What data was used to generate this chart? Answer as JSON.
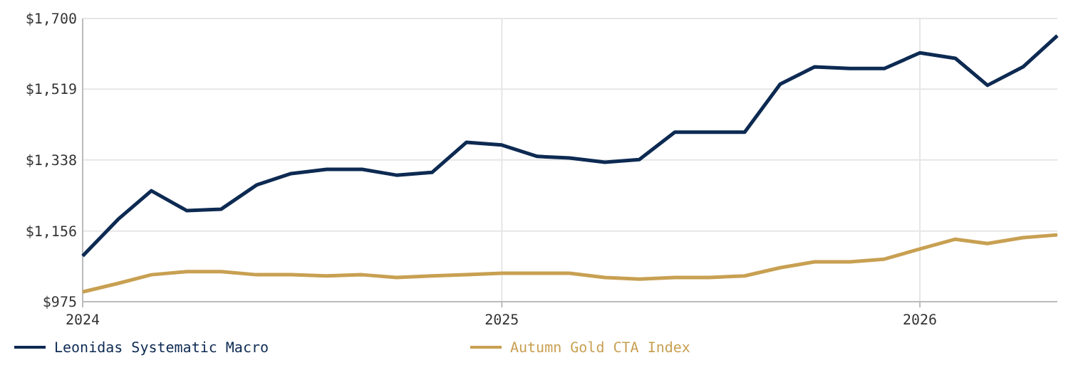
{
  "chart_data": {
    "type": "line",
    "x": [
      "2024-01",
      "2024-02",
      "2024-03",
      "2024-04",
      "2024-05",
      "2024-06",
      "2024-07",
      "2024-08",
      "2024-09",
      "2024-10",
      "2024-11",
      "2024-12",
      "2025-01",
      "2025-02",
      "2025-03",
      "2025-04",
      "2025-05",
      "2025-06",
      "2025-07",
      "2025-08",
      "2025-09",
      "2025-10",
      "2025-11",
      "2025-12",
      "2026-01",
      "2026-02",
      "2026-03",
      "2026-04",
      "2026-05"
    ],
    "series": [
      {
        "name": "Leonidas Systematic Macro",
        "color": "#0d2a52",
        "values": [
          1092,
          1186,
          1259,
          1208,
          1212,
          1274,
          1303,
          1314,
          1314,
          1299,
          1306,
          1383,
          1376,
          1347,
          1343,
          1332,
          1339,
          1409,
          1409,
          1409,
          1532,
          1576,
          1572,
          1572,
          1612,
          1598,
          1529,
          1576,
          1656
        ]
      },
      {
        "name": "Autumn Gold CTA Index",
        "color": "#c8a052",
        "values": [
          1000,
          1022,
          1044,
          1052,
          1052,
          1044,
          1044,
          1041,
          1044,
          1037,
          1041,
          1044,
          1048,
          1048,
          1048,
          1037,
          1033,
          1037,
          1037,
          1041,
          1062,
          1077,
          1077,
          1084,
          1110,
          1135,
          1124,
          1139,
          1146
        ]
      }
    ],
    "xlim": [
      "2024-01",
      "2026-05"
    ],
    "xticks": [
      {
        "value": "2024-01",
        "label": "2024"
      },
      {
        "value": "2025-01",
        "label": "2025"
      },
      {
        "value": "2026-01",
        "label": "2026"
      }
    ],
    "ylim": [
      975,
      1700
    ],
    "yticks": [
      {
        "value": 975,
        "label": "$975"
      },
      {
        "value": 1156,
        "label": "$1,156"
      },
      {
        "value": 1338,
        "label": "$1,338"
      },
      {
        "value": 1519,
        "label": "$1,519"
      },
      {
        "value": 1700,
        "label": "$1,700"
      }
    ],
    "grid": true,
    "legend": "bottom",
    "marker": "none",
    "line_style": "solid"
  }
}
